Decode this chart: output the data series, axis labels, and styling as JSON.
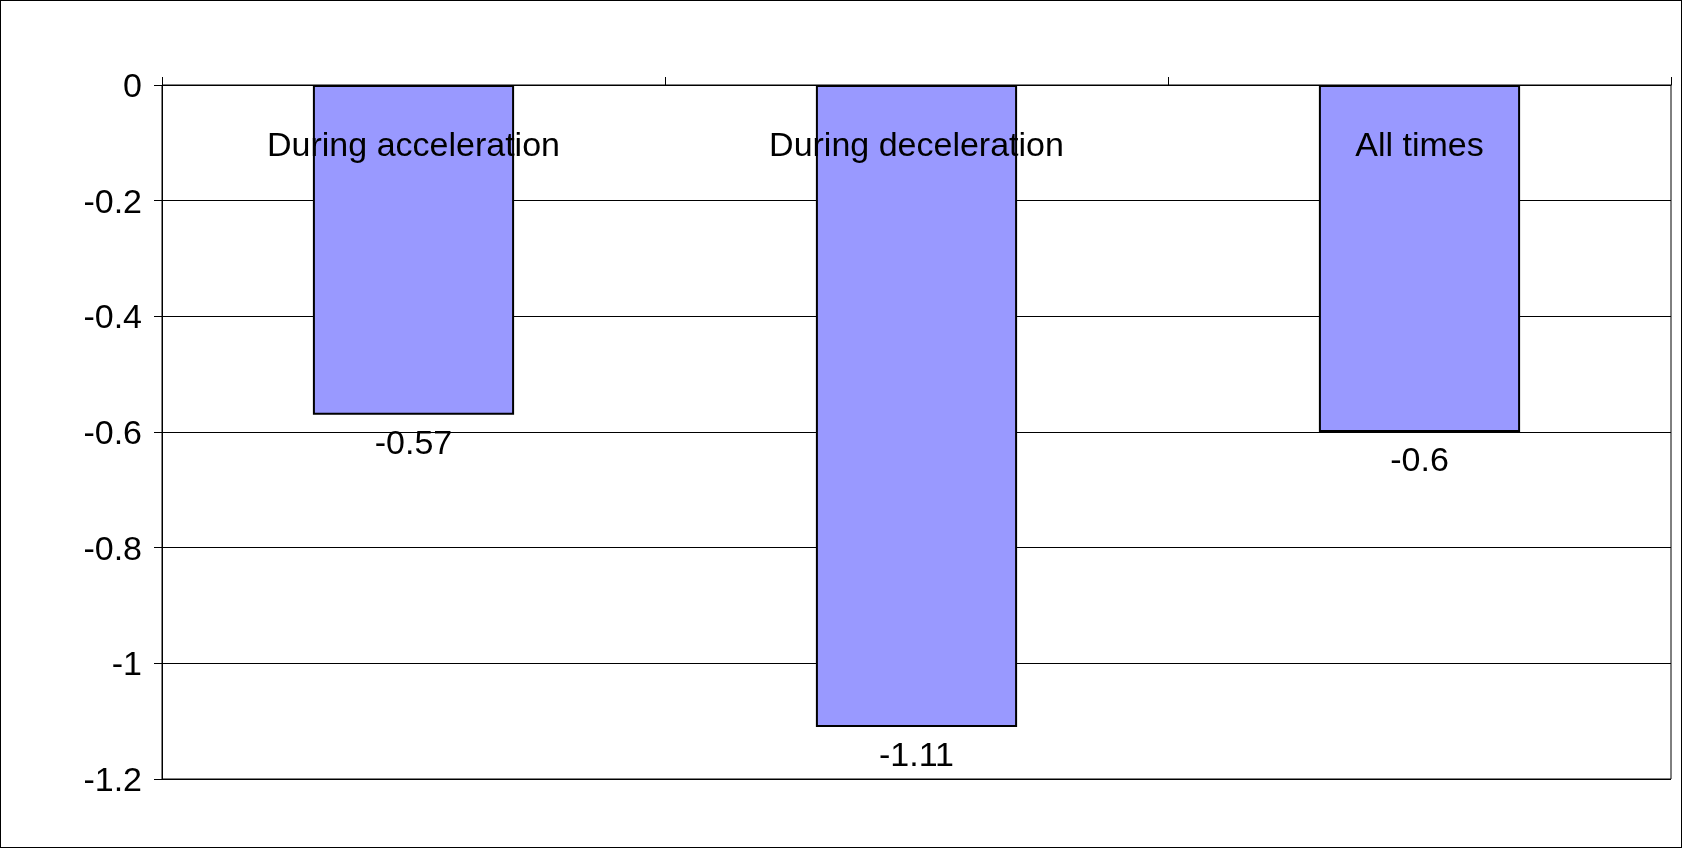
{
  "chart_data": {
    "type": "bar",
    "categories": [
      "During acceleration",
      "During deceleration",
      "All times"
    ],
    "values": [
      -0.57,
      -1.11,
      -0.6
    ],
    "color": "#9999ff",
    "ylim": [
      -1.2,
      0
    ],
    "yticks": [
      -1.2,
      -1,
      -0.8,
      -0.6,
      -0.4,
      -0.2,
      0
    ],
    "grid": "y",
    "data_labels": true
  }
}
